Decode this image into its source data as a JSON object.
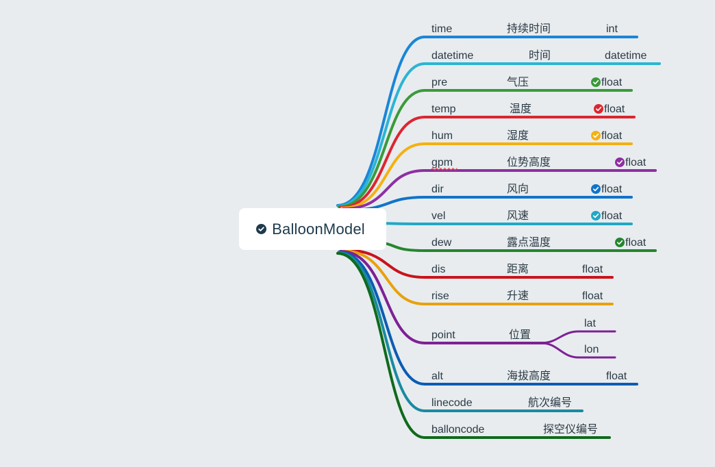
{
  "root": {
    "label": "BalloonModel",
    "icon": "check-circle-icon"
  },
  "fields": [
    {
      "name": "time",
      "desc": "持续时间",
      "type": "int",
      "color": "#1a86d8",
      "check": null
    },
    {
      "name": "datetime",
      "desc": "时间",
      "type": "datetime",
      "color": "#2bb5d3",
      "check": null
    },
    {
      "name": "pre",
      "desc": "气压",
      "type": "float",
      "color": "#3a9a3a",
      "check": "#3a9a3a"
    },
    {
      "name": "temp",
      "desc": "温度",
      "type": "float",
      "color": "#dc2530",
      "check": "#dc2530"
    },
    {
      "name": "hum",
      "desc": "湿度",
      "type": "float",
      "color": "#f5b10f",
      "check": "#f5b10f"
    },
    {
      "name": "gpm",
      "desc": "位势高度",
      "type": "float",
      "color": "#8e2fa2",
      "check": "#8e2fa2"
    },
    {
      "name": "dir",
      "desc": "风向",
      "type": "float",
      "color": "#1173c9",
      "check": "#1173c9"
    },
    {
      "name": "vel",
      "desc": "风速",
      "type": "float",
      "color": "#20a8c4",
      "check": "#20a8c4"
    },
    {
      "name": "dew",
      "desc": "露点温度",
      "type": "float",
      "color": "#25862e",
      "check": "#25862e"
    },
    {
      "name": "dis",
      "desc": "距离",
      "type": "float",
      "color": "#c8141c",
      "check": null
    },
    {
      "name": "rise",
      "desc": "升速",
      "type": "float",
      "color": "#e8a10c",
      "check": null
    },
    {
      "name": "point",
      "desc": "位置",
      "type": null,
      "color": "#7e2095",
      "check": null,
      "children": [
        "lat",
        "lon"
      ]
    },
    {
      "name": "alt",
      "desc": "海拔高度",
      "type": "float",
      "color": "#0b5cb3",
      "check": null
    },
    {
      "name": "linecode",
      "desc": "航次编号",
      "type": null,
      "color": "#1a8aa0",
      "check": null
    },
    {
      "name": "balloncode",
      "desc": "探空仪编号",
      "type": null,
      "color": "#0f6a1c",
      "check": null
    }
  ]
}
